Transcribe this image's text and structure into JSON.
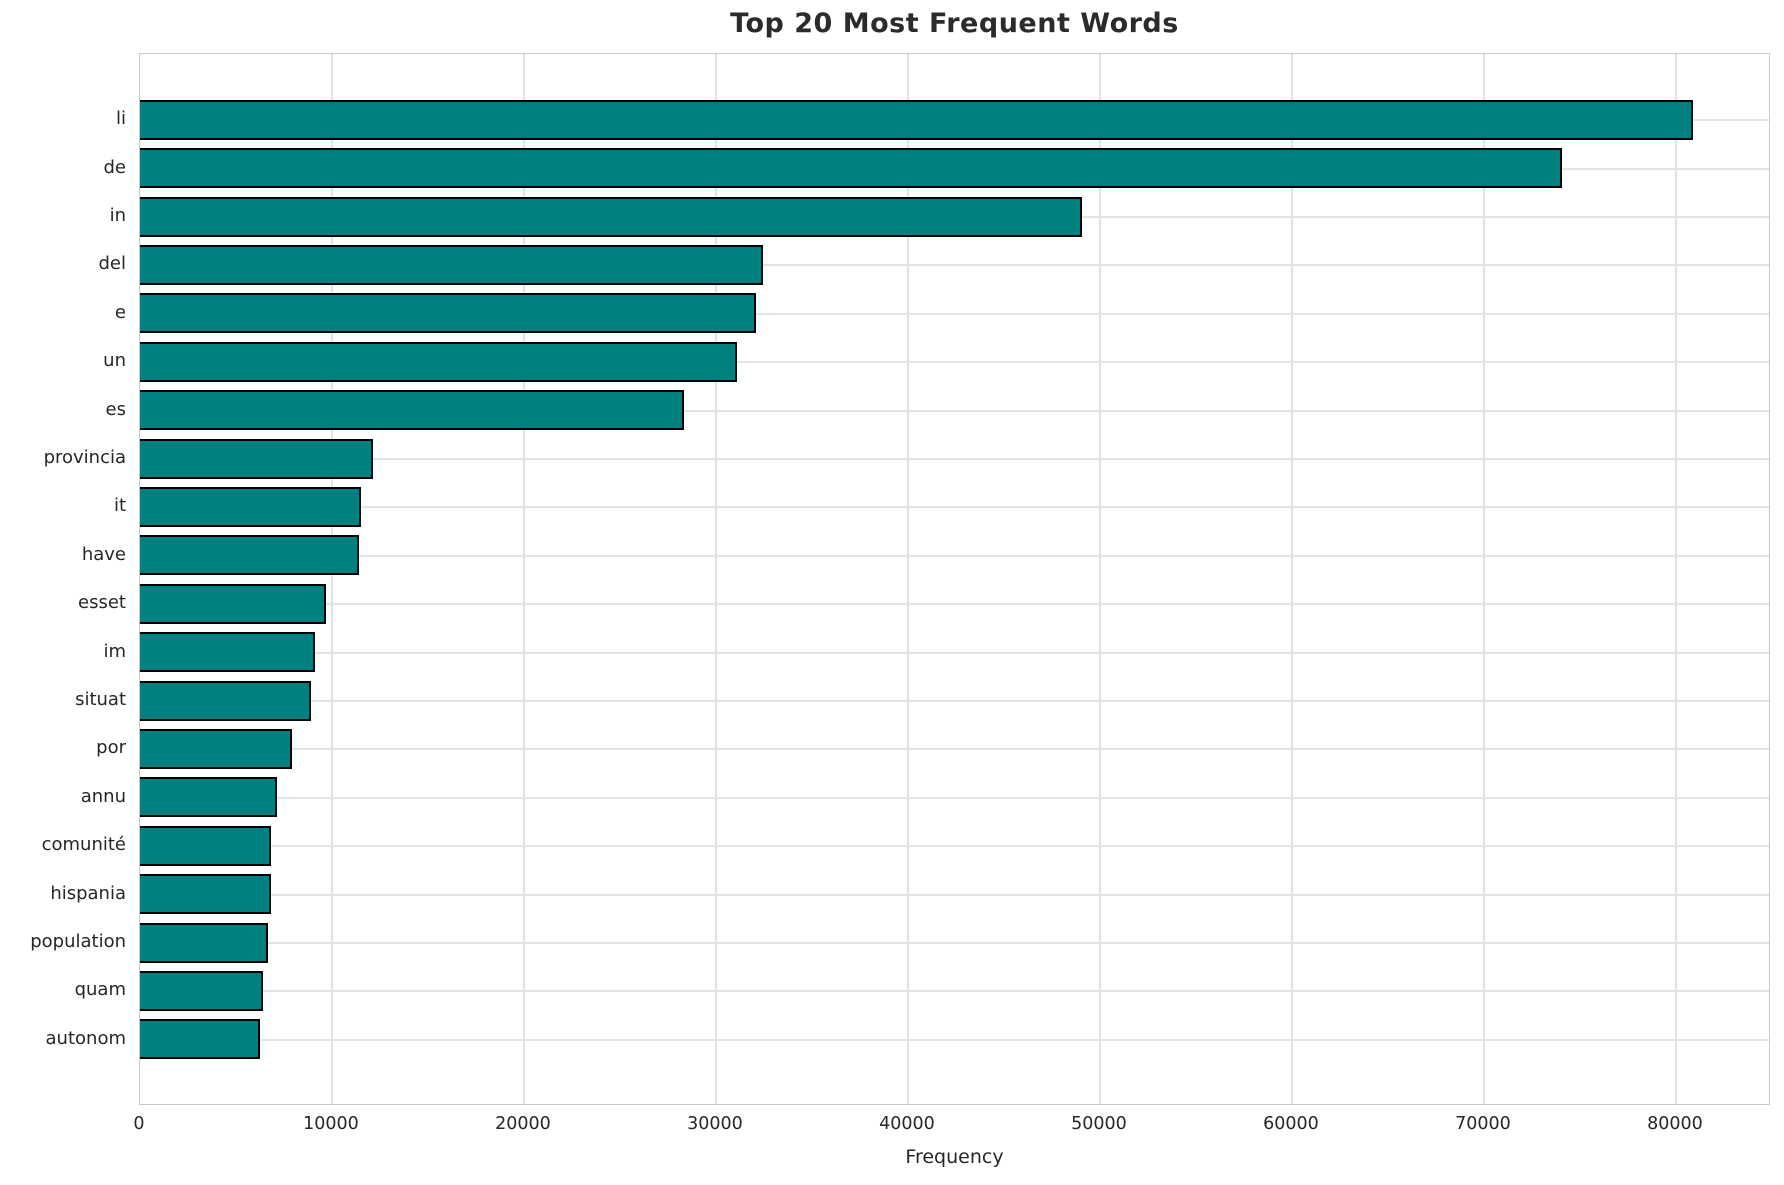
{
  "chart_data": {
    "type": "bar",
    "orientation": "horizontal",
    "title": "Top 20 Most Frequent Words",
    "xlabel": "Frequency",
    "ylabel": "",
    "categories": [
      "li",
      "de",
      "in",
      "del",
      "e",
      "un",
      "es",
      "provincia",
      "it",
      "have",
      "esset",
      "im",
      "situat",
      "por",
      "annu",
      "comunité",
      "hispania",
      "population",
      "quam",
      "autonom"
    ],
    "values": [
      80900,
      74100,
      49100,
      32500,
      32100,
      31100,
      28350,
      12150,
      11550,
      11450,
      9700,
      9150,
      8950,
      7950,
      7150,
      6850,
      6840,
      6700,
      6450,
      6300
    ],
    "xlim": [
      0,
      84950
    ],
    "xticks": [
      0,
      10000,
      20000,
      30000,
      40000,
      50000,
      60000,
      70000,
      80000
    ],
    "grid": true,
    "legend": "none",
    "bar_color": "#008080",
    "bar_edge_color": "#000000",
    "grid_color": "#e3e3e3",
    "text_color": "#262626"
  }
}
